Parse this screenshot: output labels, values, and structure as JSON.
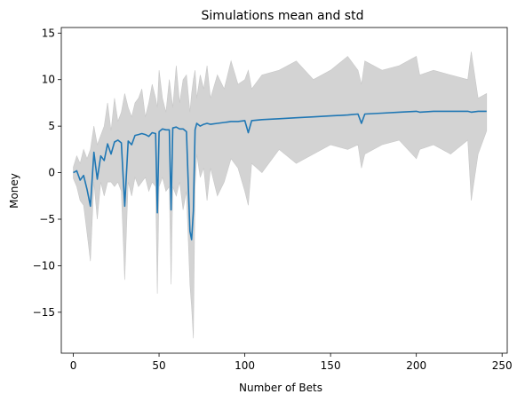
{
  "chart_data": {
    "type": "line",
    "title": "Simulations mean and std",
    "xlabel": "Number of Bets",
    "ylabel": "Money",
    "xlim": [
      -7,
      253
    ],
    "ylim": [
      -19.4,
      15.6
    ],
    "xticks": [
      0,
      50,
      100,
      150,
      200,
      250
    ],
    "yticks": [
      -15,
      -10,
      -5,
      0,
      5,
      10,
      15
    ],
    "grid": false,
    "colors": {
      "mean": "#1f77b4",
      "band": "#d3d3d3"
    },
    "series": [
      {
        "x": [
          0,
          2,
          4,
          6,
          8,
          10,
          12,
          14,
          16,
          18,
          20,
          22,
          24,
          26,
          28,
          30,
          32,
          34,
          36,
          38,
          40,
          42,
          44,
          46,
          48,
          49,
          50,
          52,
          54,
          56,
          57,
          58,
          60,
          62,
          64,
          66,
          68,
          69,
          70,
          71,
          72,
          74,
          76,
          78,
          80,
          84,
          88,
          92,
          96,
          100,
          102,
          104,
          110,
          120,
          130,
          140,
          150,
          160,
          166,
          168,
          170,
          180,
          190,
          200,
          202,
          210,
          220,
          230,
          232,
          236,
          241
        ],
        "mean": [
          0.0,
          0.2,
          -0.8,
          -0.3,
          -1.8,
          -3.6,
          2.2,
          -0.7,
          1.8,
          1.3,
          3.1,
          2.0,
          3.3,
          3.5,
          3.2,
          -3.6,
          3.4,
          3.0,
          4.0,
          4.1,
          4.2,
          4.1,
          3.9,
          4.3,
          4.2,
          -4.3,
          4.4,
          4.7,
          4.6,
          4.6,
          -4.0,
          4.8,
          4.9,
          4.7,
          4.7,
          4.4,
          -6.3,
          -7.2,
          -4.1,
          4.6,
          5.3,
          5.0,
          5.2,
          5.3,
          5.2,
          5.3,
          5.4,
          5.5,
          5.5,
          5.6,
          4.3,
          5.6,
          5.7,
          5.8,
          5.9,
          6.0,
          6.1,
          6.2,
          6.3,
          5.3,
          6.3,
          6.4,
          6.5,
          6.6,
          6.5,
          6.6,
          6.6,
          6.6,
          6.5,
          6.6,
          6.6
        ],
        "upper": [
          0.6,
          1.8,
          1.0,
          2.5,
          1.5,
          2.5,
          5.0,
          3.0,
          4.0,
          5.0,
          7.5,
          4.5,
          8.0,
          5.5,
          6.5,
          8.5,
          7.0,
          6.0,
          7.5,
          8.0,
          9.0,
          6.0,
          7.5,
          9.5,
          8.0,
          7.0,
          11.0,
          8.0,
          6.5,
          10.0,
          8.5,
          7.0,
          11.5,
          7.5,
          10.0,
          10.5,
          6.5,
          8.5,
          10.0,
          11.0,
          8.0,
          10.5,
          9.0,
          11.5,
          8.0,
          10.5,
          9.0,
          12.0,
          9.5,
          10.0,
          11.0,
          9.0,
          10.5,
          11.0,
          12.0,
          10.0,
          11.0,
          12.5,
          11.0,
          9.5,
          12.0,
          11.0,
          11.5,
          12.5,
          10.5,
          11.0,
          10.5,
          10.0,
          13.0,
          8.0,
          8.5
        ],
        "lower": [
          -0.6,
          -1.5,
          -3.0,
          -3.5,
          -6.5,
          -9.5,
          -1.0,
          -5.0,
          -1.0,
          -2.5,
          -1.0,
          -1.0,
          -1.5,
          -1.0,
          -2.0,
          -11.5,
          -1.0,
          -2.5,
          -0.5,
          -1.5,
          -1.0,
          -0.5,
          -2.0,
          -1.0,
          -1.5,
          -13.0,
          -1.5,
          -0.5,
          -2.0,
          -1.5,
          -12.0,
          -1.5,
          -2.5,
          -1.0,
          -4.0,
          -2.0,
          -12.0,
          -14.5,
          -17.8,
          -1.5,
          2.0,
          -0.5,
          0.5,
          -3.0,
          0.5,
          -2.5,
          -1.0,
          1.5,
          0.5,
          -2.0,
          -3.5,
          1.0,
          0.0,
          2.5,
          1.0,
          2.0,
          3.0,
          2.5,
          3.0,
          0.5,
          2.0,
          3.0,
          3.5,
          1.5,
          2.5,
          3.0,
          2.0,
          3.5,
          -3.0,
          2.0,
          4.5
        ]
      }
    ]
  }
}
